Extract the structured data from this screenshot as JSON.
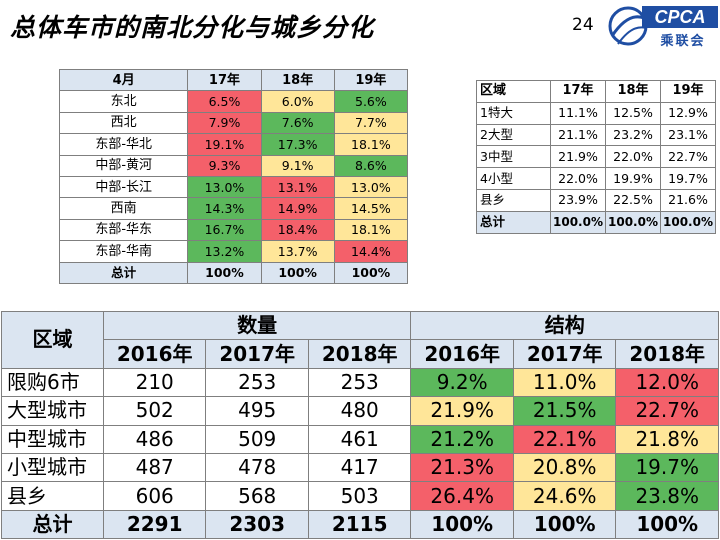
{
  "page": {
    "title": "总体车市的南北分化与城乡分化",
    "number": "24",
    "logo": {
      "brand": "CPCA",
      "sub": "乘联会"
    }
  },
  "colors": {
    "green": "#5cb85c",
    "yellow": "#ffe699",
    "red": "#f4606a",
    "header": "#dbe5f1"
  },
  "table1": {
    "header": [
      "4月",
      "17年",
      "18年",
      "19年"
    ],
    "rows": [
      {
        "region": "东北",
        "values": [
          "6.5%",
          "6.0%",
          "5.6%"
        ],
        "colors": [
          "red",
          "yellow",
          "green"
        ]
      },
      {
        "region": "西北",
        "values": [
          "7.9%",
          "7.6%",
          "7.7%"
        ],
        "colors": [
          "red",
          "green",
          "yellow"
        ]
      },
      {
        "region": "东部-华北",
        "values": [
          "19.1%",
          "17.3%",
          "18.1%"
        ],
        "colors": [
          "red",
          "green",
          "yellow"
        ]
      },
      {
        "region": "中部-黄河",
        "values": [
          "9.3%",
          "9.1%",
          "8.6%"
        ],
        "colors": [
          "red",
          "yellow",
          "green"
        ]
      },
      {
        "region": "中部-长江",
        "values": [
          "13.0%",
          "13.1%",
          "13.0%"
        ],
        "colors": [
          "green",
          "red",
          "yellow"
        ]
      },
      {
        "region": "西南",
        "values": [
          "14.3%",
          "14.9%",
          "14.5%"
        ],
        "colors": [
          "green",
          "red",
          "yellow"
        ]
      },
      {
        "region": "东部-华东",
        "values": [
          "16.7%",
          "18.4%",
          "18.1%"
        ],
        "colors": [
          "green",
          "red",
          "yellow"
        ]
      },
      {
        "region": "东部-华南",
        "values": [
          "13.2%",
          "13.7%",
          "14.4%"
        ],
        "colors": [
          "green",
          "yellow",
          "red"
        ]
      }
    ],
    "total": {
      "region": "总计",
      "values": [
        "100%",
        "100%",
        "100%"
      ]
    }
  },
  "table2": {
    "header": [
      "区域",
      "17年",
      "18年",
      "19年"
    ],
    "rows": [
      {
        "region": "1特大",
        "values": [
          "11.1%",
          "12.5%",
          "12.9%"
        ]
      },
      {
        "region": "2大型",
        "values": [
          "21.1%",
          "23.2%",
          "23.1%"
        ]
      },
      {
        "region": "3中型",
        "values": [
          "21.9%",
          "22.0%",
          "22.7%"
        ]
      },
      {
        "region": "4小型",
        "values": [
          "22.0%",
          "19.9%",
          "19.7%"
        ]
      },
      {
        "region": "县乡",
        "values": [
          "23.9%",
          "22.5%",
          "21.6%"
        ]
      }
    ],
    "total": {
      "region": "总计",
      "values": [
        "100.0%",
        "100.0%",
        "100.0%"
      ]
    }
  },
  "table3": {
    "region_header": "区域",
    "group_quantity": "数量",
    "group_structure": "结构",
    "years": [
      "2016年",
      "2017年",
      "2018年"
    ],
    "rows": [
      {
        "region": "限购6市",
        "quantity": [
          "210",
          "253",
          "253"
        ],
        "structure": [
          "9.2%",
          "11.0%",
          "12.0%"
        ],
        "colors": [
          "green",
          "yellow",
          "red"
        ]
      },
      {
        "region": "大型城市",
        "quantity": [
          "502",
          "495",
          "480"
        ],
        "structure": [
          "21.9%",
          "21.5%",
          "22.7%"
        ],
        "colors": [
          "yellow",
          "green",
          "red"
        ]
      },
      {
        "region": "中型城市",
        "quantity": [
          "486",
          "509",
          "461"
        ],
        "structure": [
          "21.2%",
          "22.1%",
          "21.8%"
        ],
        "colors": [
          "green",
          "red",
          "yellow"
        ]
      },
      {
        "region": "小型城市",
        "quantity": [
          "487",
          "478",
          "417"
        ],
        "structure": [
          "21.3%",
          "20.8%",
          "19.7%"
        ],
        "colors": [
          "red",
          "yellow",
          "green"
        ]
      },
      {
        "region": "县乡",
        "quantity": [
          "606",
          "568",
          "503"
        ],
        "structure": [
          "26.4%",
          "24.6%",
          "23.8%"
        ],
        "colors": [
          "red",
          "yellow",
          "green"
        ]
      }
    ],
    "total": {
      "region": "总计",
      "quantity": [
        "2291",
        "2303",
        "2115"
      ],
      "structure": [
        "100%",
        "100%",
        "100%"
      ]
    }
  }
}
